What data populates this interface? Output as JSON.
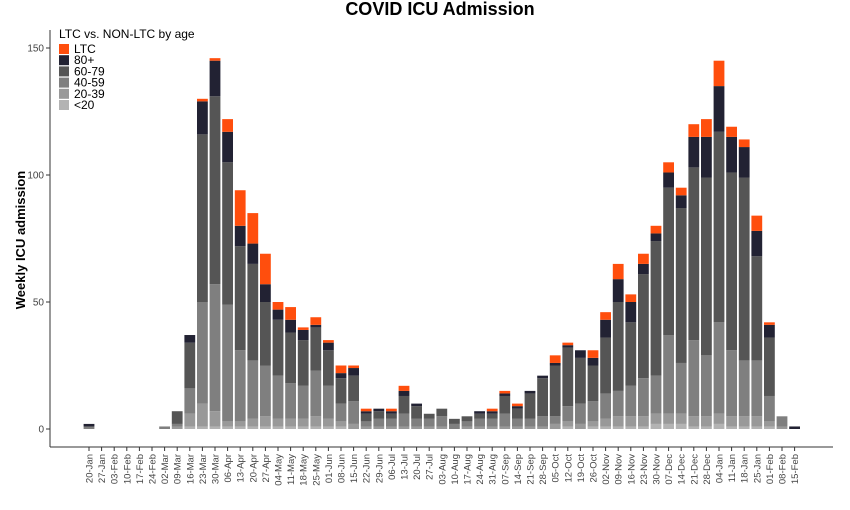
{
  "chart_data": {
    "type": "bar",
    "stacked": true,
    "title": "COVID ICU Admission",
    "xlabel": "",
    "ylabel": "Weekly ICU admission",
    "ylim": [
      0,
      150
    ],
    "yticks": [
      0,
      50,
      100,
      150
    ],
    "grid": false,
    "legend": {
      "title": "LTC vs. NON-LTC by age",
      "placement": "top-left"
    },
    "categories": [
      "20-Jan",
      "27-Jan",
      "03-Feb",
      "10-Feb",
      "17-Feb",
      "24-Feb",
      "02-Mar",
      "09-Mar",
      "16-Mar",
      "23-Mar",
      "30-Mar",
      "06-Apr",
      "13-Apr",
      "20-Apr",
      "27-Apr",
      "04-May",
      "11-May",
      "18-May",
      "25-May",
      "01-Jun",
      "08-Jun",
      "15-Jun",
      "22-Jun",
      "29-Jun",
      "06-Jul",
      "13-Jul",
      "20-Jul",
      "27-Jul",
      "03-Aug",
      "10-Aug",
      "17-Aug",
      "24-Aug",
      "31-Aug",
      "07-Sep",
      "14-Sep",
      "21-Sep",
      "28-Sep",
      "05-Oct",
      "12-Oct",
      "19-Oct",
      "26-Oct",
      "02-Nov",
      "09-Nov",
      "16-Nov",
      "23-Nov",
      "30-Nov",
      "07-Dec",
      "14-Dec",
      "21-Dec",
      "28-Dec",
      "04-Jan",
      "11-Jan",
      "18-Jan",
      "25-Jan",
      "01-Feb",
      "08-Feb",
      "15-Feb"
    ],
    "series": [
      {
        "name": "<20",
        "color": "#b3b3b3",
        "values": [
          0,
          0,
          0,
          0,
          0,
          0,
          0,
          0,
          1,
          1,
          1,
          1,
          1,
          1,
          1,
          1,
          1,
          1,
          1,
          1,
          1,
          0,
          0,
          0,
          0,
          0,
          0,
          0,
          0,
          0,
          0,
          0,
          0,
          0,
          0,
          0,
          0,
          0,
          1,
          0,
          1,
          1,
          1,
          1,
          1,
          2,
          2,
          2,
          1,
          1,
          2,
          1,
          1,
          1,
          1,
          0,
          0
        ]
      },
      {
        "name": "20-39",
        "color": "#999999",
        "values": [
          0,
          0,
          0,
          0,
          0,
          0,
          0,
          1,
          5,
          9,
          6,
          2,
          2,
          3,
          4,
          3,
          3,
          3,
          4,
          3,
          2,
          2,
          1,
          1,
          1,
          1,
          1,
          1,
          1,
          0,
          1,
          1,
          1,
          1,
          1,
          1,
          1,
          2,
          2,
          2,
          2,
          3,
          4,
          4,
          4,
          4,
          4,
          4,
          4,
          4,
          4,
          4,
          4,
          4,
          2,
          1,
          0
        ]
      },
      {
        "name": "40-59",
        "color": "#7f7f7f",
        "values": [
          1,
          0,
          0,
          0,
          0,
          0,
          1,
          1,
          10,
          40,
          50,
          46,
          28,
          23,
          20,
          17,
          14,
          13,
          18,
          13,
          7,
          9,
          2,
          3,
          3,
          5,
          3,
          3,
          4,
          2,
          2,
          3,
          3,
          5,
          3,
          3,
          4,
          3,
          6,
          8,
          8,
          10,
          10,
          12,
          15,
          15,
          31,
          20,
          30,
          24,
          36,
          26,
          22,
          22,
          10,
          4,
          0
        ]
      },
      {
        "name": "60-79",
        "color": "#555555",
        "values": [
          0,
          0,
          0,
          0,
          0,
          0,
          0,
          5,
          18,
          66,
          74,
          56,
          41,
          38,
          25,
          22,
          20,
          18,
          17,
          14,
          10,
          10,
          3,
          3,
          2,
          7,
          5,
          2,
          3,
          2,
          2,
          2,
          2,
          7,
          4,
          10,
          15,
          20,
          23,
          18,
          14,
          22,
          35,
          25,
          41,
          53,
          58,
          61,
          68,
          70,
          75,
          70,
          72,
          41,
          23,
          0,
          0
        ]
      },
      {
        "name": "80+",
        "color": "#222233",
        "values": [
          1,
          0,
          0,
          0,
          0,
          0,
          0,
          0,
          3,
          13,
          14,
          12,
          8,
          8,
          7,
          4,
          5,
          4,
          1,
          3,
          2,
          3,
          1,
          1,
          1,
          2,
          1,
          0,
          0,
          0,
          0,
          1,
          1,
          1,
          1,
          1,
          1,
          1,
          1,
          3,
          3,
          7,
          9,
          8,
          4,
          3,
          6,
          5,
          12,
          16,
          18,
          14,
          12,
          10,
          5,
          0,
          1
        ]
      },
      {
        "name": "LTC",
        "color": "#ff4e0d",
        "values": [
          0,
          0,
          0,
          0,
          0,
          0,
          0,
          0,
          0,
          1,
          1,
          5,
          14,
          12,
          12,
          3,
          5,
          1,
          3,
          1,
          3,
          1,
          1,
          0,
          1,
          2,
          0,
          0,
          0,
          0,
          0,
          0,
          1,
          1,
          1,
          0,
          0,
          3,
          1,
          0,
          3,
          3,
          6,
          3,
          4,
          3,
          4,
          3,
          5,
          7,
          10,
          4,
          3,
          6,
          1,
          0,
          0
        ]
      }
    ]
  }
}
